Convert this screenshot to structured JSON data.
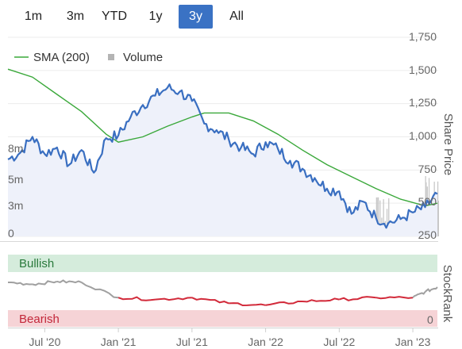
{
  "range_selector": {
    "buttons": [
      {
        "label": "1m"
      },
      {
        "label": "3m"
      },
      {
        "label": "YTD"
      },
      {
        "label": "1y"
      },
      {
        "label": "3y"
      },
      {
        "label": "All"
      }
    ],
    "selected": "3y",
    "active_color": "#3a72c4"
  },
  "legend": {
    "sma_label": "SMA (200)",
    "volume_label": "Volume"
  },
  "axes": {
    "share_price_title": "Share Price",
    "stockrank_title": "StockRank",
    "price_ticks": [
      "1,750",
      "1,500",
      "1,250",
      "1,000",
      "750",
      "500",
      "250"
    ],
    "volume_ticks": [
      "8m",
      "5m",
      "3m",
      "0"
    ],
    "stockrank_tick": "0",
    "x_ticks": [
      "Jul '20",
      "Jan '21",
      "Jul '21",
      "Jan '22",
      "Jul '22",
      "Jan '23"
    ]
  },
  "stockrank_zones": {
    "bullish_label": "Bullish",
    "bearish_label": "Bearish",
    "bullish_color": "#d5ecdc",
    "bearish_color": "#f6d3d6"
  },
  "colors": {
    "price_line": "#3a6fc1",
    "price_fill": "#eef1fa",
    "sma_line": "#3aa83a",
    "volume_bar": "#c8c8c8",
    "rank_grey": "#a0a0a0",
    "rank_red": "#d22a3a"
  },
  "chart_data": {
    "type": "line",
    "x_range": [
      "2020-04",
      "2023-03"
    ],
    "ylim_price": [
      250,
      1750
    ],
    "ylim_volume": [
      0,
      8
    ],
    "volume_unit": "m",
    "series": [
      {
        "name": "SMA (200)",
        "x": [
          "2020-04",
          "2020-06",
          "2020-08",
          "2020-10",
          "2020-12",
          "2021-01",
          "2021-03",
          "2021-05",
          "2021-07",
          "2021-08",
          "2021-10",
          "2021-12",
          "2022-02",
          "2022-04",
          "2022-06",
          "2022-08",
          "2022-10",
          "2022-12",
          "2023-02",
          "2023-03"
        ],
        "values": [
          1510,
          1450,
          1320,
          1190,
          1020,
          960,
          1000,
          1080,
          1150,
          1180,
          1180,
          1120,
          1020,
          900,
          790,
          700,
          610,
          530,
          480,
          500
        ]
      },
      {
        "name": "Price",
        "x": [
          "2020-04",
          "2020-05",
          "2020-06",
          "2020-07",
          "2020-08",
          "2020-09",
          "2020-10",
          "2020-11",
          "2020-12",
          "2021-01",
          "2021-02",
          "2021-03",
          "2021-04",
          "2021-05",
          "2021-06",
          "2021-07",
          "2021-08",
          "2021-09",
          "2021-10",
          "2021-11",
          "2021-12",
          "2022-01",
          "2022-02",
          "2022-03",
          "2022-04",
          "2022-05",
          "2022-06",
          "2022-07",
          "2022-08",
          "2022-09",
          "2022-10",
          "2022-11",
          "2022-12",
          "2023-01",
          "2023-02",
          "2023-03"
        ],
        "values": [
          830,
          880,
          1000,
          870,
          920,
          790,
          900,
          730,
          990,
          1010,
          1150,
          1240,
          1310,
          1370,
          1340,
          1270,
          1100,
          1050,
          980,
          920,
          870,
          960,
          910,
          820,
          760,
          690,
          610,
          590,
          420,
          510,
          390,
          350,
          380,
          430,
          470,
          570
        ]
      },
      {
        "name": "Volume",
        "x": [
          "2020-04",
          "2020-07",
          "2020-10",
          "2021-01",
          "2021-04",
          "2021-07",
          "2021-10",
          "2022-01",
          "2022-04",
          "2022-07",
          "2022-10",
          "2022-11",
          "2023-01",
          "2023-02",
          "2023-03"
        ],
        "values": [
          0.8,
          0.9,
          0.7,
          1.0,
          0.8,
          0.6,
          0.5,
          0.9,
          0.7,
          0.8,
          3.6,
          0.9,
          1.2,
          5.0,
          3.3
        ]
      },
      {
        "name": "StockRank",
        "x": [
          "2020-04",
          "2020-06",
          "2020-08",
          "2020-10",
          "2021-01",
          "2021-04",
          "2021-07",
          "2021-10",
          "2022-01",
          "2022-04",
          "2022-07",
          "2022-10",
          "2023-01",
          "2023-02",
          "2023-03"
        ],
        "values": [
          30,
          28,
          31,
          30,
          14,
          12,
          14,
          8,
          6,
          10,
          12,
          14,
          14,
          20,
          25
        ]
      }
    ]
  }
}
